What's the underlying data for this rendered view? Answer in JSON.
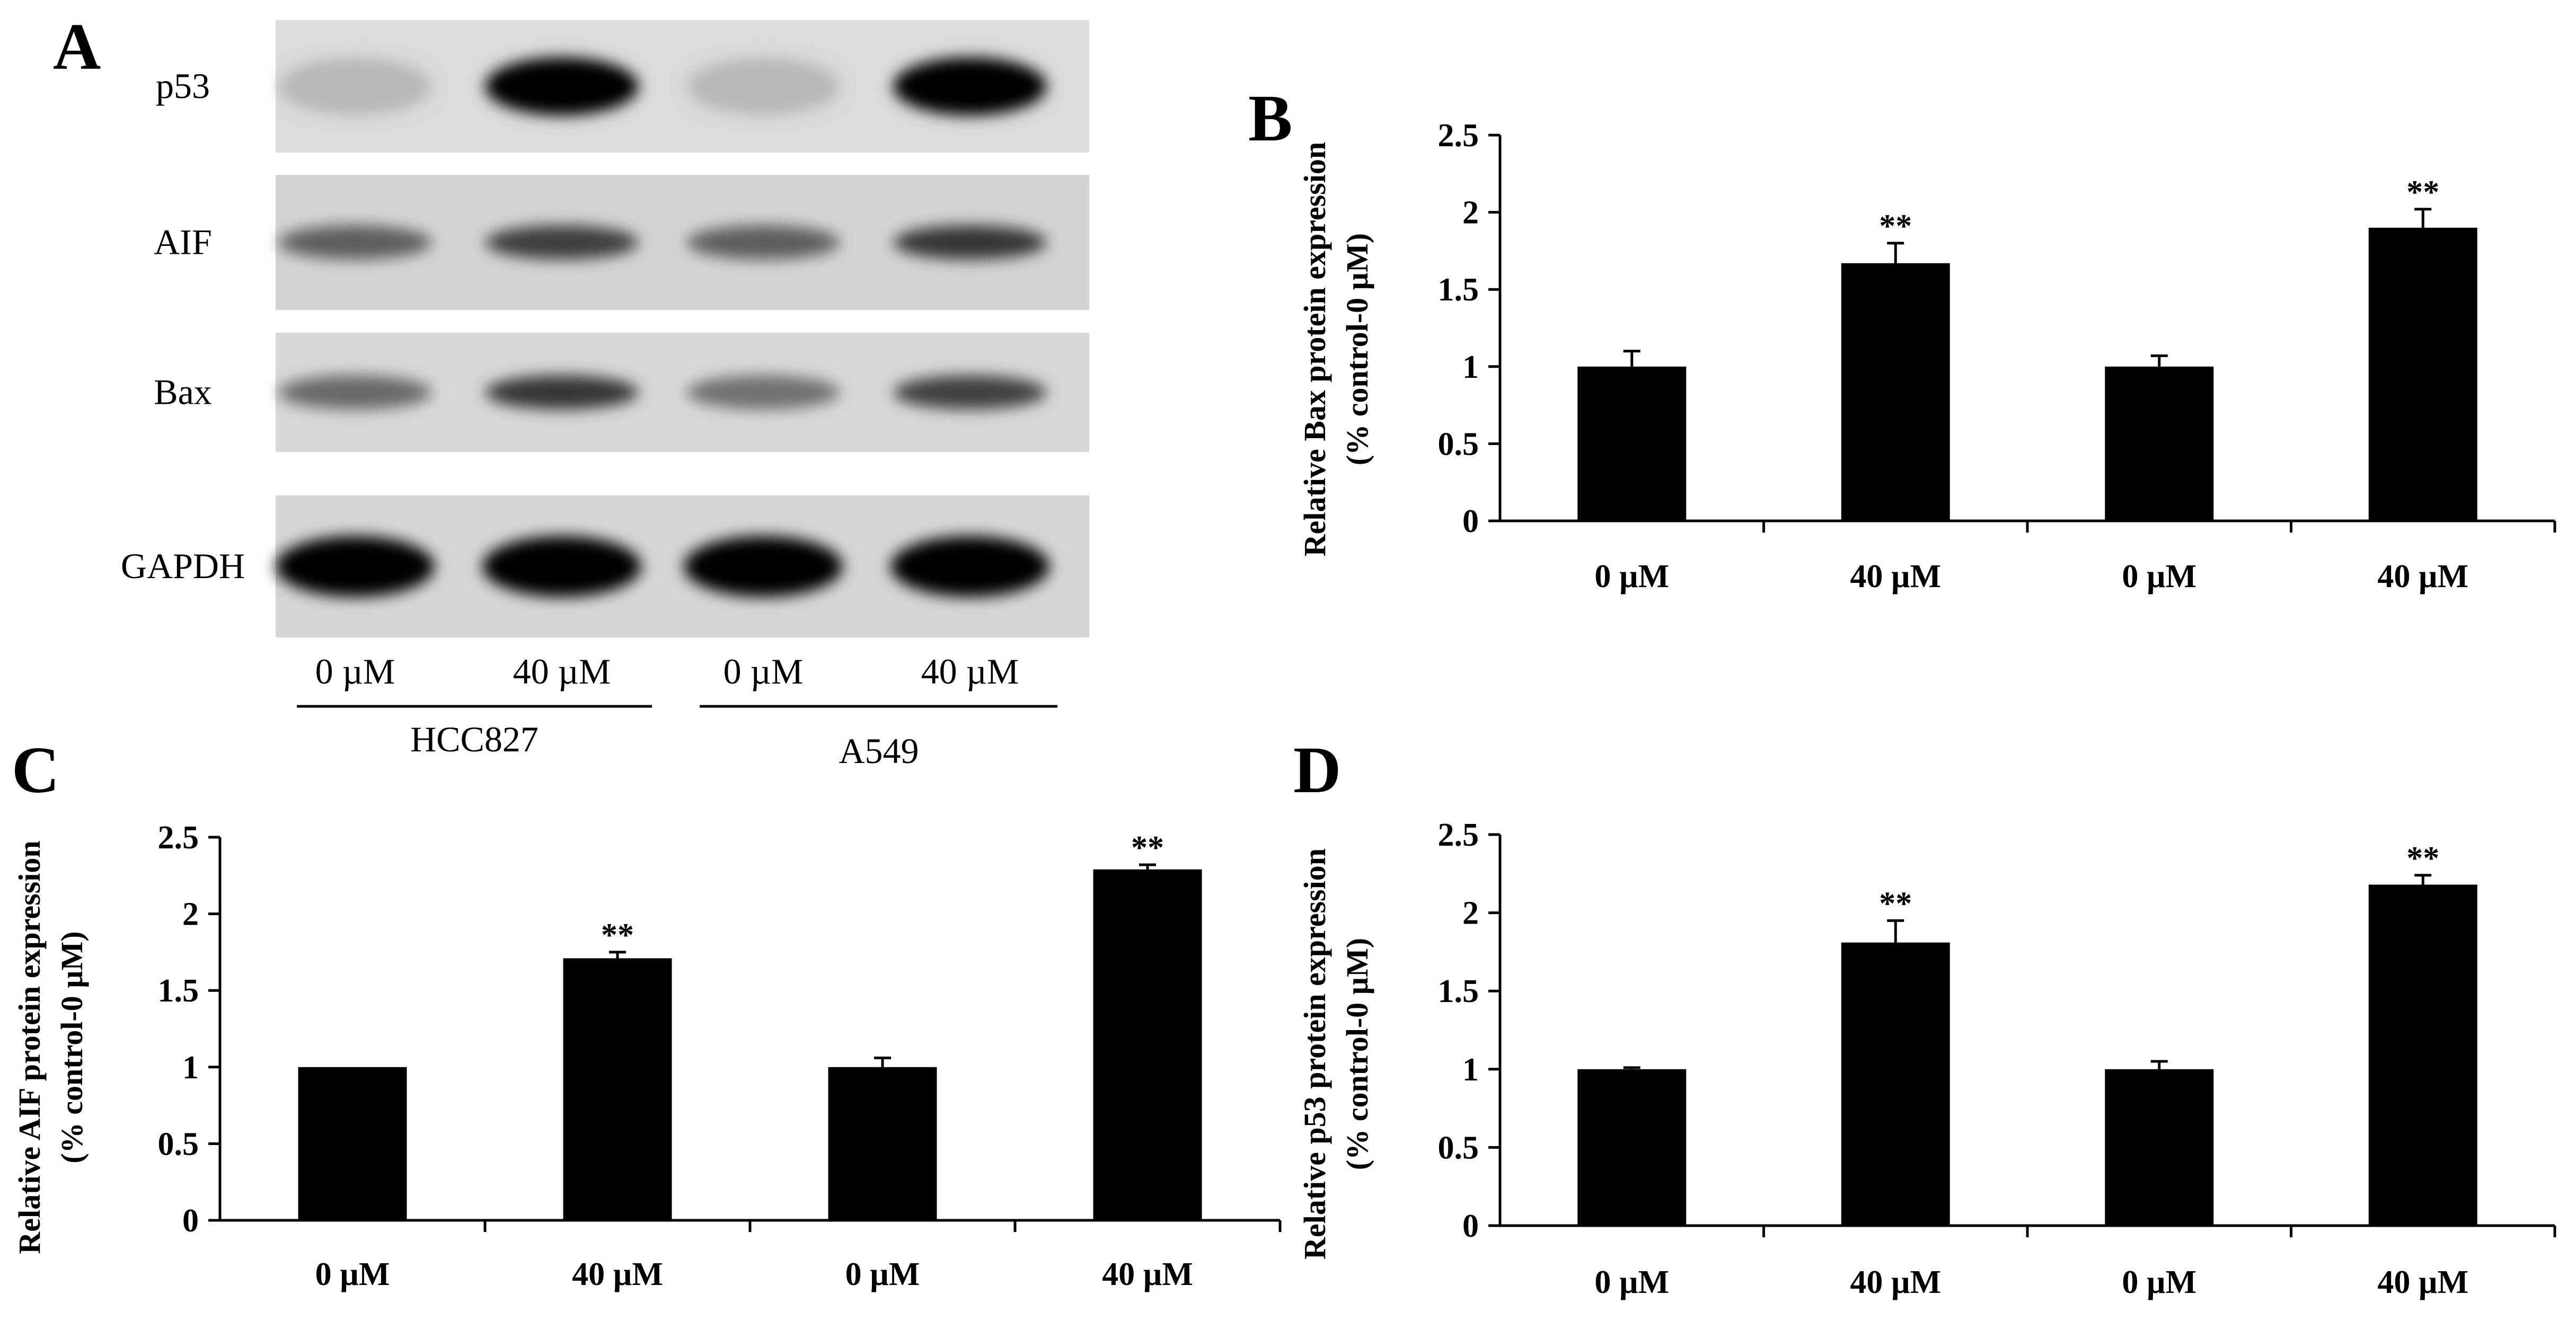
{
  "panels": {
    "a": "A",
    "b": "B",
    "c": "C",
    "d": "D"
  },
  "blot": {
    "proteins": [
      "p53",
      "AIF",
      "Bax",
      "GAPDH"
    ],
    "lane_labels": [
      "0 µM",
      "40 µM",
      "0 µM",
      "40 µM"
    ],
    "cell_lines": [
      "HCC827",
      "A549"
    ],
    "band_intensity": [
      [
        0.08,
        1.0,
        0.08,
        1.0
      ],
      [
        0.55,
        0.72,
        0.55,
        0.75
      ],
      [
        0.5,
        0.75,
        0.45,
        0.7
      ],
      [
        1.0,
        1.0,
        1.0,
        1.0
      ]
    ]
  },
  "chart_data": [
    {
      "type": "bar",
      "panel": "B",
      "categories": [
        "0 µM",
        "40 µM",
        "0 µM",
        "40 µM"
      ],
      "values": [
        1.0,
        1.67,
        1.0,
        1.9
      ],
      "errors": [
        0.1,
        0.13,
        0.07,
        0.12
      ],
      "annotations": [
        "",
        "**",
        "",
        "**"
      ],
      "ylabel_line1": "Relative Bax protein expression",
      "ylabel_line2": "(% control-0 µM)",
      "yticks": [
        "0",
        "0.5",
        "1",
        "1.5",
        "2",
        "2.5"
      ],
      "ylim": [
        0,
        2.5
      ],
      "grid": false,
      "bar_color": "#000000"
    },
    {
      "type": "bar",
      "panel": "C",
      "categories": [
        "0 µM",
        "40 µM",
        "0 µM",
        "40 µM"
      ],
      "values": [
        1.0,
        1.71,
        1.0,
        2.29
      ],
      "errors": [
        0.0,
        0.04,
        0.06,
        0.03
      ],
      "annotations": [
        "",
        "**",
        "",
        "**"
      ],
      "ylabel_line1": "Relative AIF protein expression",
      "ylabel_line2": "(% control-0 µM)",
      "yticks": [
        "0",
        "0.5",
        "1",
        "1.5",
        "2",
        "2.5"
      ],
      "ylim": [
        0,
        2.5
      ],
      "grid": false,
      "bar_color": "#000000"
    },
    {
      "type": "bar",
      "panel": "D",
      "categories": [
        "0 µM",
        "40 µM",
        "0 µM",
        "40 µM"
      ],
      "values": [
        1.0,
        1.81,
        1.0,
        2.18
      ],
      "errors": [
        0.01,
        0.14,
        0.05,
        0.06
      ],
      "annotations": [
        "",
        "**",
        "",
        "**"
      ],
      "ylabel_line1": "Relative p53 protein expression",
      "ylabel_line2": "(% control-0 µM)",
      "yticks": [
        "0",
        "0.5",
        "1",
        "1.5",
        "2",
        "2.5"
      ],
      "ylim": [
        0,
        2.5
      ],
      "grid": false,
      "bar_color": "#000000"
    }
  ]
}
